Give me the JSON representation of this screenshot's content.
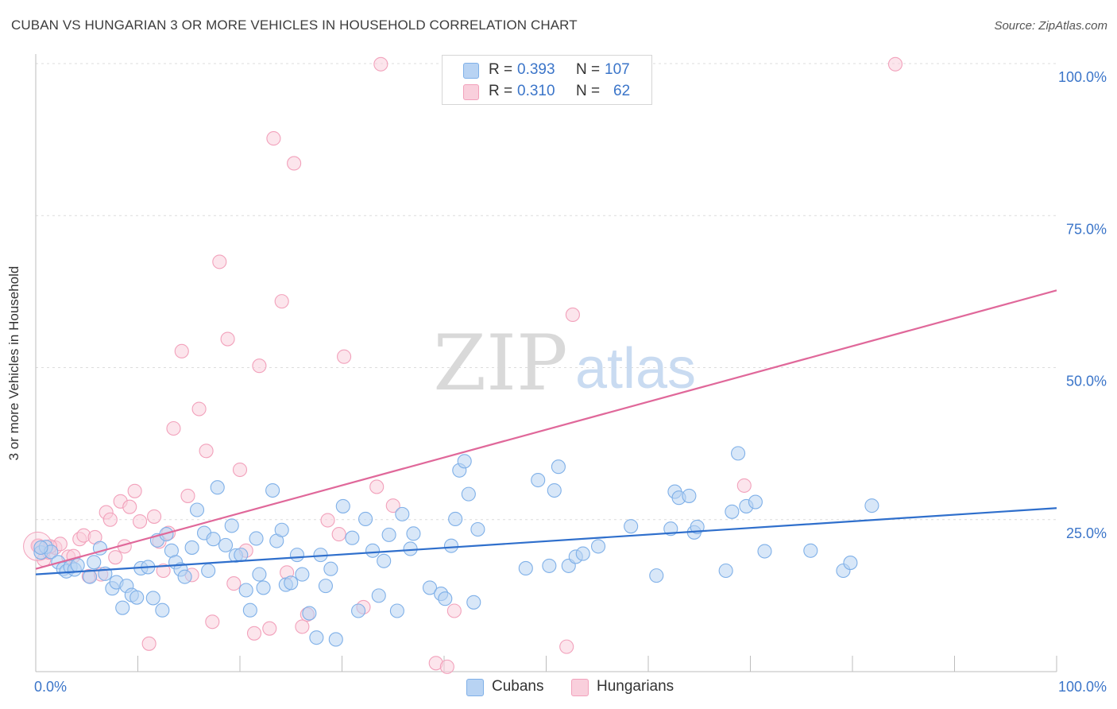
{
  "header": {
    "title": "CUBAN VS HUNGARIAN 3 OR MORE VEHICLES IN HOUSEHOLD CORRELATION CHART",
    "source": "Source: ZipAtlas.com"
  },
  "watermark": {
    "zip": "ZIP",
    "atlas": "atlas"
  },
  "legend": {
    "r_label": "R =",
    "n_label": "N =",
    "rows": [
      {
        "r": "0.393",
        "n": "107"
      },
      {
        "r": "0.310",
        "n": "62"
      }
    ]
  },
  "bottom_legend": [
    "Cubans",
    "Hungarians"
  ],
  "colors": {
    "cubans": "#7fb0e8",
    "cubans_fill": "#b8d3f3",
    "cubans_line": "#2f6fcc",
    "hungarians": "#f2a1bb",
    "hungarians_fill": "#f9cfdc",
    "hungarians_line": "#e0689a",
    "tick_label": "#3b75c9",
    "grid": "#dcdcdc"
  },
  "chart_data": {
    "type": "scatter",
    "xlabel": "",
    "ylabel": "3 or more Vehicles in Household",
    "xlim": [
      0,
      100
    ],
    "ylim": [
      0,
      100
    ],
    "x_tick_labels": [
      "0.0%",
      "100.0%"
    ],
    "y_tick_labels": [
      "25.0%",
      "50.0%",
      "75.0%",
      "100.0%"
    ],
    "y_ticks": [
      25,
      50,
      75,
      100
    ],
    "grid": true,
    "legend_position": "top-center",
    "series": [
      {
        "name": "Cubans",
        "r": 0.393,
        "n": 107,
        "trend": [
          [
            0,
            16.0
          ],
          [
            100,
            26.9
          ]
        ],
        "points": [
          [
            0.5,
            19.6
          ],
          [
            1.0,
            20.5
          ],
          [
            1.5,
            19.7
          ],
          [
            2.2,
            18.0
          ],
          [
            2.7,
            16.9
          ],
          [
            3.0,
            16.5
          ],
          [
            3.4,
            17.2
          ],
          [
            3.8,
            16.8
          ],
          [
            4.1,
            17.5
          ],
          [
            5.3,
            15.6
          ],
          [
            5.7,
            18.0
          ],
          [
            6.3,
            20.3
          ],
          [
            6.8,
            16.1
          ],
          [
            7.5,
            13.7
          ],
          [
            7.9,
            14.7
          ],
          [
            8.5,
            10.5
          ],
          [
            8.9,
            14.1
          ],
          [
            9.4,
            12.6
          ],
          [
            9.9,
            12.2
          ],
          [
            10.3,
            17.0
          ],
          [
            11.0,
            17.2
          ],
          [
            11.5,
            12.1
          ],
          [
            11.9,
            21.6
          ],
          [
            12.4,
            10.1
          ],
          [
            12.8,
            22.6
          ],
          [
            13.3,
            19.9
          ],
          [
            13.7,
            18.0
          ],
          [
            14.2,
            16.8
          ],
          [
            14.6,
            15.6
          ],
          [
            15.3,
            20.4
          ],
          [
            15.8,
            26.6
          ],
          [
            16.5,
            22.8
          ],
          [
            16.9,
            16.6
          ],
          [
            17.4,
            21.8
          ],
          [
            17.8,
            30.3
          ],
          [
            18.6,
            20.8
          ],
          [
            19.2,
            24.0
          ],
          [
            19.6,
            19.1
          ],
          [
            20.1,
            19.2
          ],
          [
            20.6,
            13.4
          ],
          [
            21.0,
            10.1
          ],
          [
            21.6,
            21.9
          ],
          [
            21.9,
            16.0
          ],
          [
            22.3,
            13.8
          ],
          [
            23.2,
            29.8
          ],
          [
            23.6,
            21.5
          ],
          [
            24.1,
            23.3
          ],
          [
            24.5,
            14.3
          ],
          [
            25.0,
            14.6
          ],
          [
            25.6,
            19.2
          ],
          [
            26.1,
            16.0
          ],
          [
            26.8,
            9.6
          ],
          [
            27.5,
            5.6
          ],
          [
            27.9,
            19.2
          ],
          [
            28.4,
            14.1
          ],
          [
            28.9,
            16.9
          ],
          [
            29.4,
            5.3
          ],
          [
            30.1,
            27.2
          ],
          [
            31.0,
            22.0
          ],
          [
            31.6,
            10.0
          ],
          [
            32.3,
            25.1
          ],
          [
            33.0,
            19.9
          ],
          [
            33.6,
            12.5
          ],
          [
            34.1,
            18.2
          ],
          [
            34.6,
            22.5
          ],
          [
            35.4,
            10.0
          ],
          [
            35.9,
            25.9
          ],
          [
            36.7,
            20.2
          ],
          [
            37.0,
            22.7
          ],
          [
            38.6,
            13.8
          ],
          [
            39.7,
            12.8
          ],
          [
            40.1,
            12.0
          ],
          [
            40.7,
            20.7
          ],
          [
            41.1,
            25.1
          ],
          [
            41.5,
            33.1
          ],
          [
            42.0,
            34.6
          ],
          [
            42.4,
            29.2
          ],
          [
            42.9,
            11.4
          ],
          [
            43.3,
            23.4
          ],
          [
            48.0,
            17.0
          ],
          [
            49.2,
            31.5
          ],
          [
            50.3,
            17.4
          ],
          [
            50.8,
            29.8
          ],
          [
            51.2,
            33.7
          ],
          [
            52.2,
            17.4
          ],
          [
            52.9,
            18.9
          ],
          [
            53.6,
            19.4
          ],
          [
            55.1,
            20.6
          ],
          [
            58.3,
            23.9
          ],
          [
            60.8,
            15.8
          ],
          [
            62.2,
            23.5
          ],
          [
            62.6,
            29.6
          ],
          [
            63.0,
            28.6
          ],
          [
            64.0,
            28.9
          ],
          [
            64.5,
            22.9
          ],
          [
            64.8,
            23.8
          ],
          [
            67.6,
            16.6
          ],
          [
            68.2,
            26.3
          ],
          [
            68.8,
            35.9
          ],
          [
            69.6,
            27.2
          ],
          [
            70.5,
            27.9
          ],
          [
            71.4,
            19.8
          ],
          [
            75.9,
            19.9
          ],
          [
            79.1,
            16.6
          ],
          [
            79.8,
            17.9
          ],
          [
            81.9,
            27.3
          ],
          [
            0.5,
            20.4
          ]
        ]
      },
      {
        "name": "Hungarians",
        "r": 0.31,
        "n": 62,
        "trend": [
          [
            0,
            16.9
          ],
          [
            100,
            62.7
          ]
        ],
        "points": [
          [
            0.3,
            20.7
          ],
          [
            0.8,
            18.4
          ],
          [
            1.3,
            19.6
          ],
          [
            1.9,
            20.4
          ],
          [
            2.4,
            21.0
          ],
          [
            3.2,
            18.9
          ],
          [
            3.7,
            19.0
          ],
          [
            4.3,
            21.8
          ],
          [
            4.7,
            22.4
          ],
          [
            5.2,
            15.7
          ],
          [
            5.8,
            22.1
          ],
          [
            6.4,
            16.0
          ],
          [
            6.9,
            26.2
          ],
          [
            7.3,
            25.0
          ],
          [
            7.8,
            18.8
          ],
          [
            8.3,
            28.0
          ],
          [
            8.7,
            20.6
          ],
          [
            9.2,
            27.1
          ],
          [
            9.7,
            29.7
          ],
          [
            10.2,
            24.7
          ],
          [
            11.1,
            4.6
          ],
          [
            11.6,
            25.5
          ],
          [
            12.1,
            21.4
          ],
          [
            12.5,
            16.6
          ],
          [
            13.0,
            22.8
          ],
          [
            13.5,
            40.0
          ],
          [
            14.3,
            52.7
          ],
          [
            14.9,
            28.9
          ],
          [
            15.3,
            15.9
          ],
          [
            16.0,
            43.2
          ],
          [
            16.7,
            36.3
          ],
          [
            17.3,
            8.2
          ],
          [
            18.0,
            67.4
          ],
          [
            18.8,
            54.7
          ],
          [
            19.4,
            14.5
          ],
          [
            20.0,
            33.2
          ],
          [
            20.6,
            19.9
          ],
          [
            21.4,
            6.3
          ],
          [
            21.9,
            50.3
          ],
          [
            22.9,
            7.1
          ],
          [
            23.3,
            87.7
          ],
          [
            24.1,
            60.9
          ],
          [
            24.6,
            16.3
          ],
          [
            25.3,
            83.6
          ],
          [
            26.1,
            7.4
          ],
          [
            26.6,
            9.4
          ],
          [
            28.6,
            24.9
          ],
          [
            29.7,
            22.6
          ],
          [
            30.2,
            51.8
          ],
          [
            32.1,
            10.6
          ],
          [
            33.4,
            30.4
          ],
          [
            33.8,
            99.9
          ],
          [
            35.0,
            27.3
          ],
          [
            39.2,
            1.4
          ],
          [
            41.0,
            10.0
          ],
          [
            40.3,
            0.8
          ],
          [
            52.0,
            4.1
          ],
          [
            52.6,
            58.7
          ],
          [
            69.4,
            30.6
          ],
          [
            84.2,
            99.9
          ],
          [
            1.4,
            20.6
          ],
          [
            0.2,
            20.7
          ]
        ]
      }
    ]
  }
}
